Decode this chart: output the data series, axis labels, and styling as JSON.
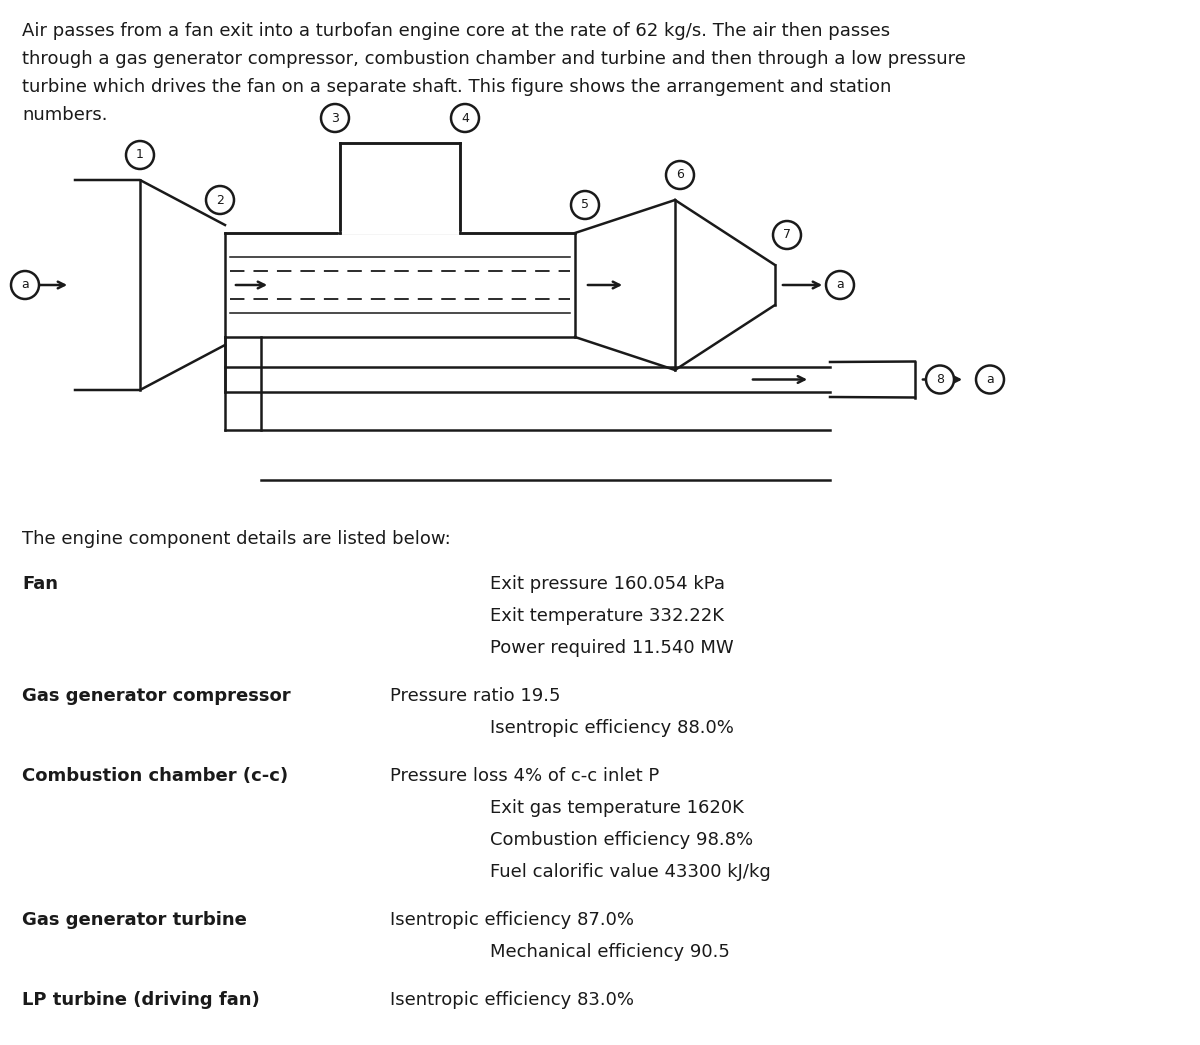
{
  "intro_text_lines": [
    "Air passes from a fan exit into a turbofan engine core at the rate of 62 kg/s. The air then passes",
    "through a gas generator compressor, combustion chamber and turbine and then through a low pressure",
    "turbine which drives the fan on a separate shaft. This figure shows the arrangement and station",
    "numbers."
  ],
  "section_label": "The engine component details are listed below:",
  "components": [
    {
      "label": "Fan",
      "details": [
        {
          "col": "right_far",
          "text": "Exit pressure 160.054 kPa"
        },
        {
          "col": "right_far",
          "text": "Exit temperature 332.22K"
        },
        {
          "col": "right_far",
          "text": "Power required 11.540 MW"
        }
      ]
    },
    {
      "label": "Gas generator compressor",
      "details": [
        {
          "col": "right_near",
          "text": "Pressure ratio 19.5"
        },
        {
          "col": "right_far",
          "text": "Isentropic efficiency 88.0%"
        }
      ]
    },
    {
      "label": "Combustion chamber (c-c)",
      "details": [
        {
          "col": "right_near",
          "text": "Pressure loss 4% of c-c inlet P"
        },
        {
          "col": "right_far",
          "text": "Exit gas temperature 1620K"
        },
        {
          "col": "right_far",
          "text": "Combustion efficiency 98.8%"
        },
        {
          "col": "right_far",
          "text": "Fuel calorific value 43300 kJ/kg"
        }
      ]
    },
    {
      "label": "Gas generator turbine",
      "details": [
        {
          "col": "right_near",
          "text": "Isentropic efficiency 87.0%"
        },
        {
          "col": "right_far",
          "text": "Mechanical efficiency 90.5"
        }
      ]
    },
    {
      "label": "LP turbine (driving fan)",
      "details": [
        {
          "col": "right_near",
          "text": "Isentropic efficiency 83.0%"
        }
      ]
    }
  ],
  "bg_color": "#ffffff",
  "text_color": "#1a1a1a",
  "line_color": "#1a1a1a"
}
